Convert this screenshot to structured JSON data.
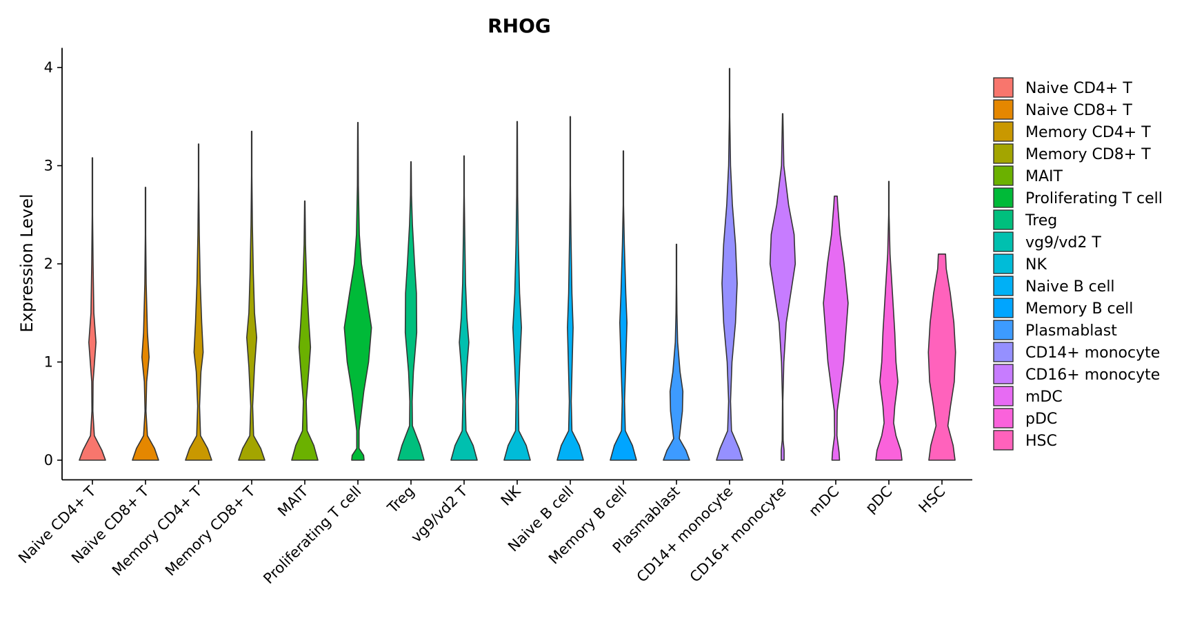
{
  "chart_data": {
    "type": "violin",
    "title": "RHOG",
    "xlabel": "",
    "ylabel": "Expression Level",
    "ylim": [
      -0.2,
      4.2
    ],
    "yticks": [
      0,
      1,
      2,
      3,
      4
    ],
    "legend_position": "right",
    "categories": [
      "Naive CD4+ T",
      "Naive CD8+ T",
      "Memory CD4+ T",
      "Memory CD8+ T",
      "MAIT",
      "Proliferating T cell",
      "Treg",
      "vg9/vd2 T",
      "NK",
      "Naive B cell",
      "Memory B cell",
      "Plasmablast",
      "CD14+ monocyte",
      "CD16+ monocyte",
      "mDC",
      "pDC",
      "HSC"
    ],
    "colors": [
      "#F8766D",
      "#E58700",
      "#C99800",
      "#A3A500",
      "#6BB100",
      "#00BA38",
      "#00BF7D",
      "#00C0AF",
      "#00BCD8",
      "#00B0F6",
      "#00A5FF",
      "#3D9BFF",
      "#9590FF",
      "#C77CFF",
      "#E76BF3",
      "#FA62DB",
      "#FF62BC"
    ],
    "series": [
      {
        "name": "Naive CD4+ T",
        "max": 3.08,
        "profile": [
          [
            0,
            0.55
          ],
          [
            0.1,
            0.4
          ],
          [
            0.25,
            0.08
          ],
          [
            0.5,
            0.02
          ],
          [
            0.8,
            0.03
          ],
          [
            1.2,
            0.15
          ],
          [
            1.5,
            0.06
          ],
          [
            2.0,
            0.03
          ],
          [
            2.5,
            0.01
          ],
          [
            3.08,
            0.01
          ]
        ]
      },
      {
        "name": "Naive CD8+ T",
        "max": 2.78,
        "profile": [
          [
            0,
            0.55
          ],
          [
            0.12,
            0.38
          ],
          [
            0.25,
            0.08
          ],
          [
            0.5,
            0.02
          ],
          [
            0.8,
            0.05
          ],
          [
            1.05,
            0.15
          ],
          [
            1.3,
            0.08
          ],
          [
            1.8,
            0.03
          ],
          [
            2.3,
            0.01
          ],
          [
            2.78,
            0.01
          ]
        ]
      },
      {
        "name": "Memory CD4+ T",
        "max": 3.22,
        "profile": [
          [
            0,
            0.55
          ],
          [
            0.12,
            0.38
          ],
          [
            0.25,
            0.08
          ],
          [
            0.55,
            0.04
          ],
          [
            0.9,
            0.1
          ],
          [
            1.1,
            0.19
          ],
          [
            1.4,
            0.13
          ],
          [
            1.8,
            0.07
          ],
          [
            2.3,
            0.03
          ],
          [
            2.8,
            0.01
          ],
          [
            3.22,
            0.01
          ]
        ]
      },
      {
        "name": "Memory CD8+ T",
        "max": 3.35,
        "profile": [
          [
            0,
            0.55
          ],
          [
            0.12,
            0.38
          ],
          [
            0.25,
            0.08
          ],
          [
            0.55,
            0.04
          ],
          [
            0.95,
            0.12
          ],
          [
            1.25,
            0.21
          ],
          [
            1.5,
            0.12
          ],
          [
            1.9,
            0.07
          ],
          [
            2.4,
            0.03
          ],
          [
            2.9,
            0.01
          ],
          [
            3.35,
            0.01
          ]
        ]
      },
      {
        "name": "MAIT",
        "max": 2.64,
        "profile": [
          [
            0,
            0.55
          ],
          [
            0.15,
            0.38
          ],
          [
            0.3,
            0.1
          ],
          [
            0.6,
            0.06
          ],
          [
            0.95,
            0.18
          ],
          [
            1.15,
            0.24
          ],
          [
            1.4,
            0.17
          ],
          [
            1.8,
            0.08
          ],
          [
            2.2,
            0.03
          ],
          [
            2.64,
            0.01
          ]
        ]
      },
      {
        "name": "Proliferating T cell",
        "max": 3.44,
        "profile": [
          [
            0,
            0.26
          ],
          [
            0.05,
            0.24
          ],
          [
            0.12,
            0.05
          ],
          [
            0.3,
            0.05
          ],
          [
            0.7,
            0.25
          ],
          [
            1.0,
            0.45
          ],
          [
            1.35,
            0.57
          ],
          [
            1.7,
            0.35
          ],
          [
            2.0,
            0.15
          ],
          [
            2.3,
            0.06
          ],
          [
            2.8,
            0.02
          ],
          [
            3.44,
            0.01
          ]
        ]
      },
      {
        "name": "Treg",
        "max": 3.04,
        "profile": [
          [
            0,
            0.55
          ],
          [
            0.15,
            0.38
          ],
          [
            0.35,
            0.06
          ],
          [
            0.6,
            0.05
          ],
          [
            0.9,
            0.1
          ],
          [
            1.3,
            0.24
          ],
          [
            1.7,
            0.23
          ],
          [
            2.0,
            0.15
          ],
          [
            2.4,
            0.06
          ],
          [
            2.7,
            0.02
          ],
          [
            3.04,
            0.01
          ]
        ]
      },
      {
        "name": "vg9/vd2 T",
        "max": 3.1,
        "profile": [
          [
            0,
            0.55
          ],
          [
            0.15,
            0.38
          ],
          [
            0.3,
            0.08
          ],
          [
            0.6,
            0.05
          ],
          [
            0.95,
            0.12
          ],
          [
            1.2,
            0.2
          ],
          [
            1.45,
            0.12
          ],
          [
            1.8,
            0.06
          ],
          [
            2.3,
            0.03
          ],
          [
            2.7,
            0.01
          ],
          [
            3.1,
            0.01
          ]
        ]
      },
      {
        "name": "NK",
        "max": 3.45,
        "profile": [
          [
            0,
            0.55
          ],
          [
            0.15,
            0.38
          ],
          [
            0.3,
            0.07
          ],
          [
            0.6,
            0.05
          ],
          [
            0.95,
            0.1
          ],
          [
            1.35,
            0.18
          ],
          [
            1.7,
            0.1
          ],
          [
            2.2,
            0.05
          ],
          [
            2.7,
            0.02
          ],
          [
            3.45,
            0.01
          ]
        ]
      },
      {
        "name": "Naive B cell",
        "max": 3.5,
        "profile": [
          [
            0,
            0.55
          ],
          [
            0.15,
            0.38
          ],
          [
            0.3,
            0.07
          ],
          [
            0.6,
            0.04
          ],
          [
            1.0,
            0.08
          ],
          [
            1.35,
            0.12
          ],
          [
            1.7,
            0.07
          ],
          [
            2.3,
            0.03
          ],
          [
            2.8,
            0.01
          ],
          [
            3.5,
            0.01
          ]
        ]
      },
      {
        "name": "Memory B cell",
        "max": 3.15,
        "profile": [
          [
            0,
            0.55
          ],
          [
            0.15,
            0.38
          ],
          [
            0.3,
            0.08
          ],
          [
            0.6,
            0.05
          ],
          [
            1.0,
            0.1
          ],
          [
            1.4,
            0.15
          ],
          [
            1.7,
            0.1
          ],
          [
            2.2,
            0.04
          ],
          [
            2.6,
            0.01
          ],
          [
            3.15,
            0.01
          ]
        ]
      },
      {
        "name": "Plasmablast",
        "max": 2.2,
        "profile": [
          [
            0,
            0.55
          ],
          [
            0.1,
            0.4
          ],
          [
            0.22,
            0.12
          ],
          [
            0.35,
            0.18
          ],
          [
            0.5,
            0.25
          ],
          [
            0.7,
            0.27
          ],
          [
            0.9,
            0.15
          ],
          [
            1.2,
            0.05
          ],
          [
            1.5,
            0.02
          ],
          [
            1.8,
            0.01
          ],
          [
            2.2,
            0.01
          ]
        ]
      },
      {
        "name": "CD14+ monocyte",
        "max": 3.99,
        "profile": [
          [
            0,
            0.55
          ],
          [
            0.12,
            0.4
          ],
          [
            0.3,
            0.08
          ],
          [
            0.6,
            0.04
          ],
          [
            1.0,
            0.1
          ],
          [
            1.4,
            0.25
          ],
          [
            1.8,
            0.32
          ],
          [
            2.2,
            0.25
          ],
          [
            2.6,
            0.12
          ],
          [
            3.0,
            0.04
          ],
          [
            3.5,
            0.01
          ],
          [
            3.99,
            0.01
          ]
        ]
      },
      {
        "name": "CD16+ monocyte",
        "max": 3.53,
        "profile": [
          [
            0,
            0.06
          ],
          [
            0.1,
            0.06
          ],
          [
            0.2,
            0.02
          ],
          [
            0.6,
            0.01
          ],
          [
            1.0,
            0.05
          ],
          [
            1.4,
            0.15
          ],
          [
            2.0,
            0.53
          ],
          [
            2.3,
            0.48
          ],
          [
            2.6,
            0.25
          ],
          [
            3.0,
            0.05
          ],
          [
            3.53,
            0.01
          ]
        ]
      },
      {
        "name": "mDC",
        "max": 2.69,
        "profile": [
          [
            0,
            0.16
          ],
          [
            0.08,
            0.14
          ],
          [
            0.25,
            0.05
          ],
          [
            0.5,
            0.06
          ],
          [
            1.0,
            0.33
          ],
          [
            1.6,
            0.52
          ],
          [
            2.0,
            0.35
          ],
          [
            2.3,
            0.18
          ],
          [
            2.6,
            0.08
          ],
          [
            2.69,
            0.06
          ]
        ]
      },
      {
        "name": "pDC",
        "max": 2.84,
        "profile": [
          [
            0,
            0.55
          ],
          [
            0.1,
            0.5
          ],
          [
            0.25,
            0.3
          ],
          [
            0.38,
            0.2
          ],
          [
            0.55,
            0.25
          ],
          [
            0.8,
            0.38
          ],
          [
            1.0,
            0.3
          ],
          [
            1.3,
            0.25
          ],
          [
            1.7,
            0.15
          ],
          [
            2.1,
            0.05
          ],
          [
            2.5,
            0.01
          ],
          [
            2.84,
            0.01
          ]
        ]
      },
      {
        "name": "HSC",
        "max": 2.1,
        "profile": [
          [
            0,
            0.55
          ],
          [
            0.15,
            0.47
          ],
          [
            0.35,
            0.25
          ],
          [
            0.55,
            0.36
          ],
          [
            0.8,
            0.52
          ],
          [
            1.1,
            0.57
          ],
          [
            1.4,
            0.5
          ],
          [
            1.7,
            0.35
          ],
          [
            1.95,
            0.18
          ],
          [
            2.1,
            0.15
          ]
        ]
      }
    ]
  }
}
